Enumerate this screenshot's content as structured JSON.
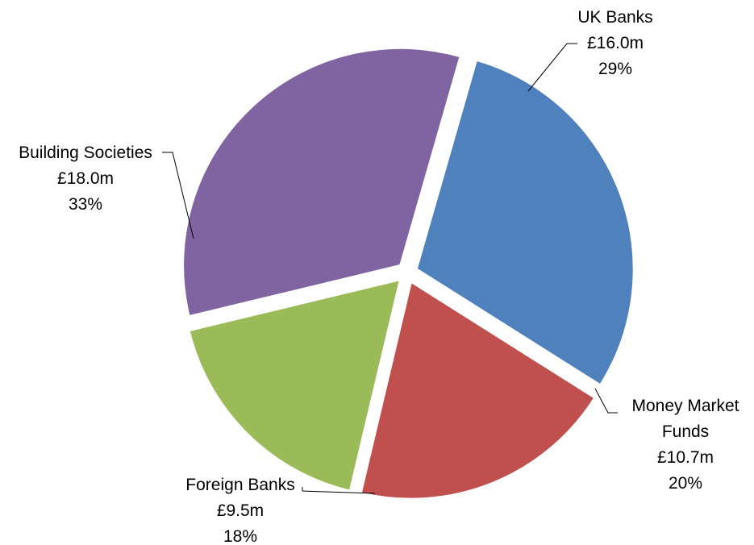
{
  "chart_data": {
    "type": "pie",
    "title": "",
    "slices": [
      {
        "name": "UK Banks",
        "value": 16.0,
        "value_label": "£16.0m",
        "percent_label": "29%",
        "color": "#4F81BD"
      },
      {
        "name": "Money Market Funds",
        "value": 10.7,
        "value_label": "£10.7m",
        "percent_label": "20%",
        "color": "#C0504D"
      },
      {
        "name": "Foreign Banks",
        "value": 9.5,
        "value_label": "£9.5m",
        "percent_label": "18%",
        "color": "#9BBB59"
      },
      {
        "name": "Building Societies",
        "value": 18.0,
        "value_label": "£18.0m",
        "percent_label": "33%",
        "color": "#8064A2"
      }
    ],
    "exploded": true,
    "legend": "none",
    "labels": "outside-with-leader-lines"
  }
}
